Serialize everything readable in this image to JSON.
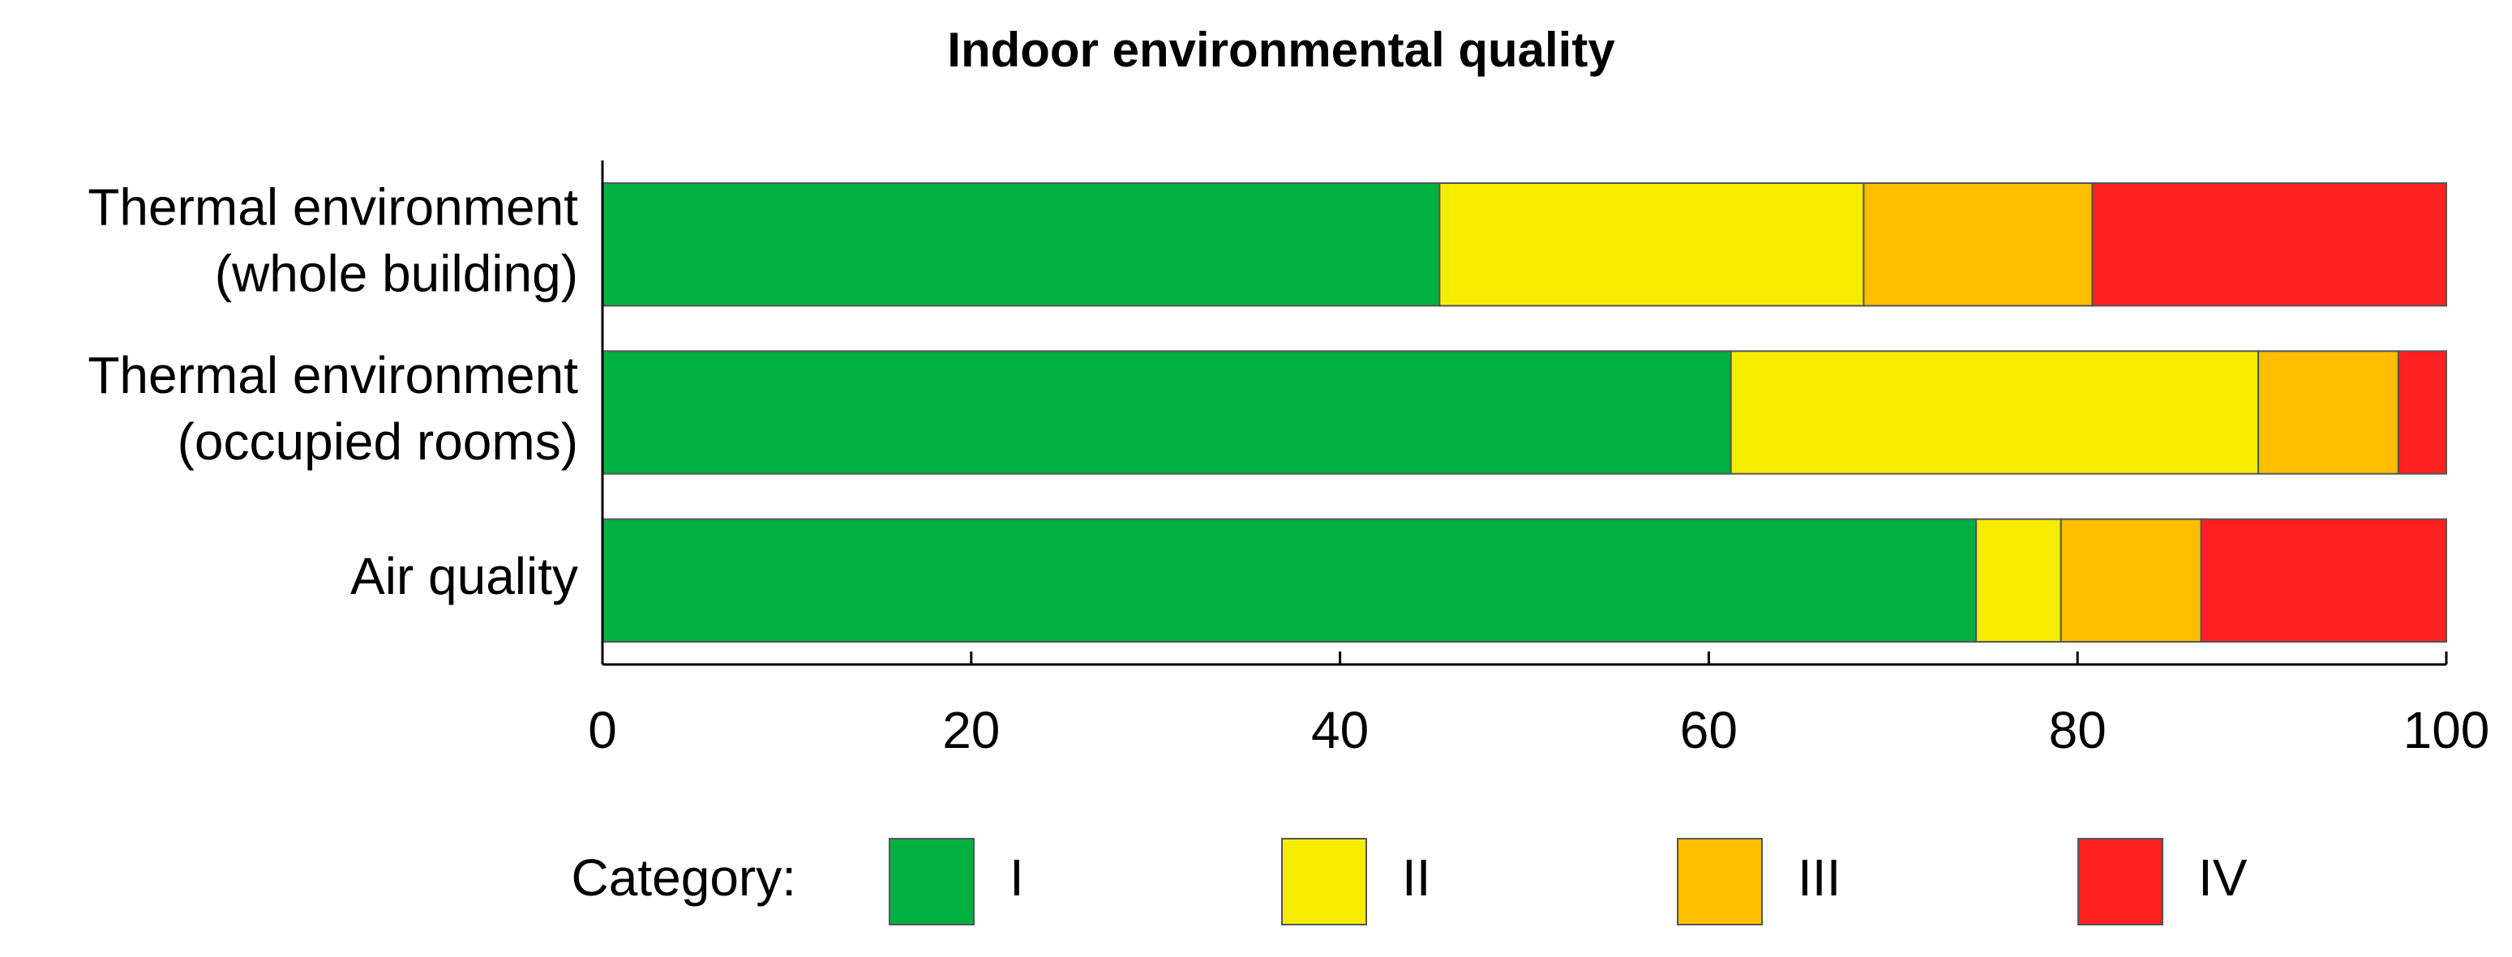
{
  "chart_data": {
    "type": "stacked-horizontal-bar",
    "title": "Indoor environmental quality",
    "categories": [
      [
        "Thermal environment",
        "(whole building)"
      ],
      [
        "Thermal environment",
        "(occupied rooms)"
      ],
      [
        "Air quality"
      ]
    ],
    "series": [
      {
        "name": "I",
        "color": "#00b140",
        "values": [
          45.4,
          61.2,
          74.5
        ]
      },
      {
        "name": "II",
        "color": "#f5ec00",
        "values": [
          23.0,
          28.6,
          4.6
        ]
      },
      {
        "name": "III",
        "color": "#ffbe00",
        "values": [
          12.4,
          7.6,
          7.6
        ]
      },
      {
        "name": "IV",
        "color": "#ff2020",
        "values": [
          19.2,
          2.6,
          13.3
        ]
      }
    ],
    "xlim": [
      0,
      100
    ],
    "xticks": [
      0,
      20,
      40,
      60,
      80,
      100
    ],
    "legend_title": "Category:",
    "legend_position": "bottom"
  }
}
